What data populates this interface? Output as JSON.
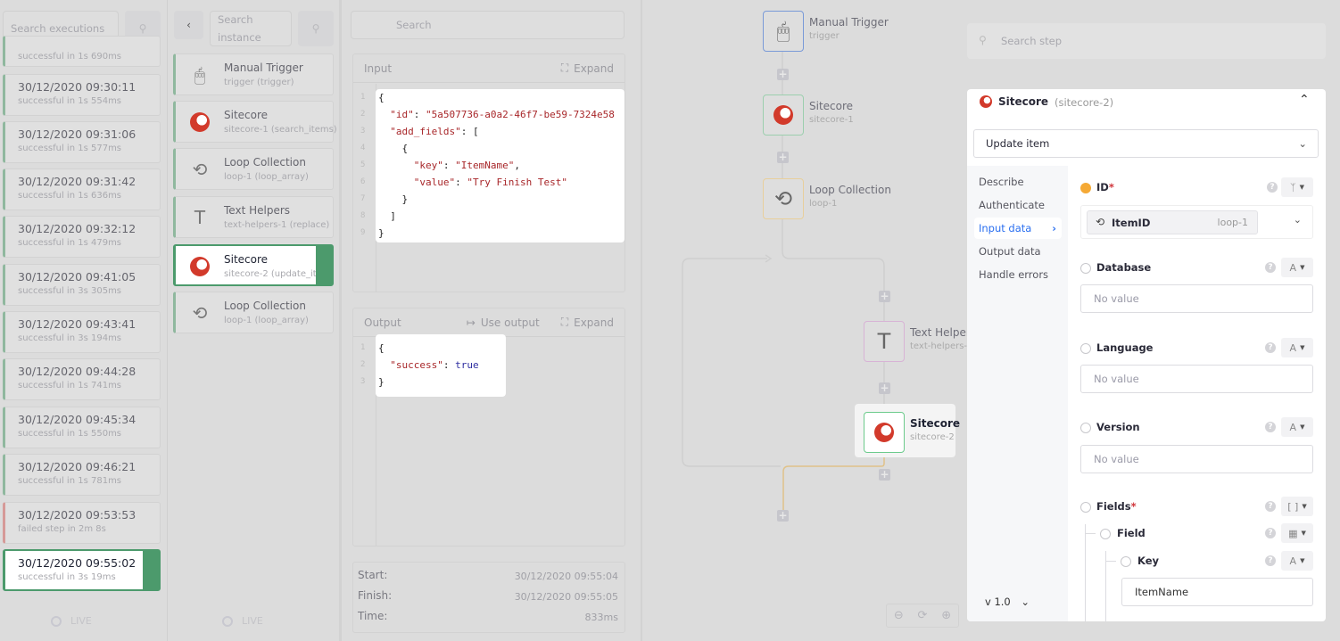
{
  "executions": {
    "search_placeholder": "Search executions",
    "partial_item_status": "successful in 1s 690ms",
    "items": [
      {
        "time": "30/12/2020 09:30:11",
        "status": "successful in 1s 554ms",
        "state": "success"
      },
      {
        "time": "30/12/2020 09:31:06",
        "status": "successful in 1s 577ms",
        "state": "success"
      },
      {
        "time": "30/12/2020 09:31:42",
        "status": "successful in 1s 636ms",
        "state": "success"
      },
      {
        "time": "30/12/2020 09:32:12",
        "status": "successful in 1s 479ms",
        "state": "success"
      },
      {
        "time": "30/12/2020 09:41:05",
        "status": "successful in 3s 305ms",
        "state": "success"
      },
      {
        "time": "30/12/2020 09:43:41",
        "status": "successful in 3s 194ms",
        "state": "success"
      },
      {
        "time": "30/12/2020 09:44:28",
        "status": "successful in 1s 741ms",
        "state": "success"
      },
      {
        "time": "30/12/2020 09:45:34",
        "status": "successful in 1s 550ms",
        "state": "success"
      },
      {
        "time": "30/12/2020 09:46:21",
        "status": "successful in 1s 781ms",
        "state": "success"
      },
      {
        "time": "30/12/2020 09:53:53",
        "status": "failed step in 2m 8s",
        "state": "failed"
      },
      {
        "time": "30/12/2020 09:55:02",
        "status": "successful in 3s 19ms",
        "state": "selected"
      }
    ],
    "live_label": "LIVE"
  },
  "steps": {
    "search_placeholder": "Search instance",
    "items": [
      {
        "name": "Manual Trigger",
        "detail": "trigger (trigger)",
        "icon": "cursor-click-icon"
      },
      {
        "name": "Sitecore",
        "detail": "sitecore-1 (search_items)",
        "icon": "sitecore-logo"
      },
      {
        "name": "Loop Collection",
        "detail": "loop-1 (loop_array)",
        "icon": "loop-icon"
      },
      {
        "name": "Text Helpers",
        "detail": "text-helpers-1 (replace)",
        "icon": "text-icon"
      },
      {
        "name": "Sitecore",
        "detail": "sitecore-2 (update_it...",
        "icon": "sitecore-logo",
        "selected": true
      },
      {
        "name": "Loop Collection",
        "detail": "loop-1 (loop_array)",
        "icon": "loop-icon"
      }
    ],
    "live_label": "LIVE"
  },
  "inspector": {
    "search_placeholder": "Search",
    "input": {
      "title": "Input",
      "expand": "Expand",
      "lines": [
        "1",
        "2",
        "3",
        "4",
        "5",
        "6",
        "7",
        "8",
        "9"
      ],
      "l_id_key": "\"id\"",
      "l_id_val": "\"5a507736-a0a2-46f7-be59-7324e58",
      "l_af_key": "\"add_fields\"",
      "l_key_key": "\"key\"",
      "l_key_val": "\"ItemName\"",
      "l_val_key": "\"value\"",
      "l_val_val": "\"Try Finish Test\""
    },
    "output": {
      "title": "Output",
      "use_output": "Use output",
      "expand": "Expand",
      "lines": [
        "1",
        "2",
        "3"
      ],
      "success_key": "\"success\"",
      "success_val": "true"
    },
    "stats": {
      "start_label": "Start:",
      "start": "30/12/2020 09:55:04",
      "finish_label": "Finish:",
      "finish": "30/12/2020 09:55:05",
      "time_label": "Time:",
      "time": "833ms"
    }
  },
  "canvas": {
    "nodes": [
      {
        "name": "Manual Trigger",
        "id": "trigger",
        "color": "#7a9ad8"
      },
      {
        "name": "Sitecore",
        "id": "sitecore-1",
        "color": "#9ccfae"
      },
      {
        "name": "Loop Collection",
        "id": "loop-1",
        "color": "#e8cf9c"
      },
      {
        "name": "Text Helpers",
        "id": "text-helpers-1",
        "color": "#d8b3d6"
      },
      {
        "name": "Sitecore",
        "id": "sitecore-2",
        "color": "#6ccb8c"
      }
    ],
    "search_step_placeholder": "Search step",
    "zoom_controls": [
      "zoom-out",
      "reset",
      "zoom-in"
    ]
  },
  "config": {
    "app_name": "Sitecore",
    "instance": "(sitecore-2)",
    "action": "Update item",
    "nav": [
      "Describe",
      "Authenticate",
      "Input data",
      "Output data",
      "Handle errors"
    ],
    "active_nav": "Input data",
    "version": "v 1.0",
    "fields": {
      "id_label": "ID",
      "id_chip": "ItemID",
      "id_chip_source": "loop-1",
      "database_label": "Database",
      "database_placeholder": "No value",
      "language_label": "Language",
      "language_placeholder": "No value",
      "version_label": "Version",
      "version_placeholder": "No value",
      "fields_label": "Fields",
      "field_label": "Field",
      "key_label": "Key",
      "key_value": "ItemName",
      "required_mark": "*",
      "text_type": "A",
      "array_type": "[ ]"
    },
    "accent": "#2a6ff0",
    "status_dot": "#f5a935"
  }
}
